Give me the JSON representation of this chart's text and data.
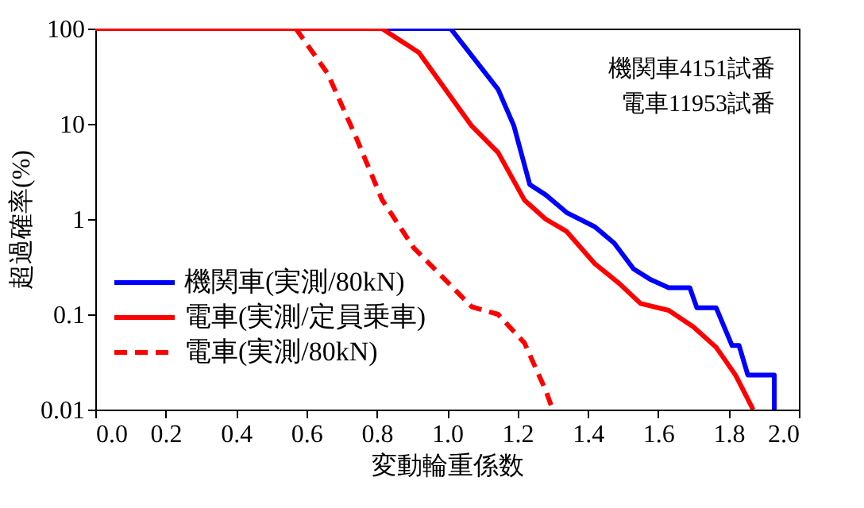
{
  "chart_data": {
    "type": "line",
    "xlabel": "変動輪重係数",
    "ylabel": "超過確率(%)",
    "annotations": [
      "機関車4151試番",
      "電車11953試番"
    ],
    "xlim": [
      0,
      2
    ],
    "xticks": [
      {
        "value": 0,
        "label": "0.0"
      },
      0.2,
      0.4,
      0.6,
      0.8,
      {
        "value": 1,
        "label": "1.0"
      },
      1.2,
      1.4,
      1.6,
      1.8,
      {
        "value": 2,
        "label": "2.0"
      }
    ],
    "ylim": [
      0.01,
      100
    ],
    "yticks": [
      0.01,
      0.1,
      1,
      10,
      100
    ],
    "log": "y",
    "grid": false,
    "legend": "bottom left",
    "series": [
      {
        "name": "機関車(実測/80kN)",
        "color": "#0000ff",
        "line_style": "solid",
        "x": [
          0,
          1.01,
          1.145,
          1.19,
          1.235,
          1.28,
          1.34,
          1.42,
          1.475,
          1.53,
          1.58,
          1.63,
          1.69,
          1.71,
          1.765,
          1.81,
          1.83,
          1.855,
          1.93,
          1.93
        ],
        "values": [
          100,
          100,
          23,
          9.5,
          2.3,
          1.8,
          1.17,
          0.83,
          0.56,
          0.3,
          0.23,
          0.19,
          0.19,
          0.117,
          0.117,
          0.047,
          0.047,
          0.023,
          0.023,
          0.01
        ]
      },
      {
        "name": "電車(実測/定員乗車)",
        "color": "#ff0000",
        "line_style": "solid",
        "x": [
          0,
          0.815,
          0.92,
          0.995,
          1.07,
          1.145,
          1.22,
          1.28,
          1.34,
          1.42,
          1.49,
          1.55,
          1.63,
          1.7,
          1.765,
          1.82,
          1.87
        ],
        "values": [
          100,
          100,
          56,
          23,
          9.5,
          5,
          1.58,
          1.0,
          0.74,
          0.34,
          0.21,
          0.13,
          0.11,
          0.074,
          0.045,
          0.023,
          0.01
        ]
      },
      {
        "name": "電車(実測/80kN)",
        "color": "#ff0000",
        "line_style": "dashed",
        "x": [
          0.57,
          0.66,
          0.74,
          0.815,
          0.905,
          0.995,
          1.07,
          1.145,
          1.22,
          1.28,
          1.3
        ],
        "values": [
          100,
          34,
          7.4,
          1.6,
          0.5,
          0.23,
          0.12,
          0.1,
          0.05,
          0.016,
          0.01
        ]
      }
    ]
  }
}
